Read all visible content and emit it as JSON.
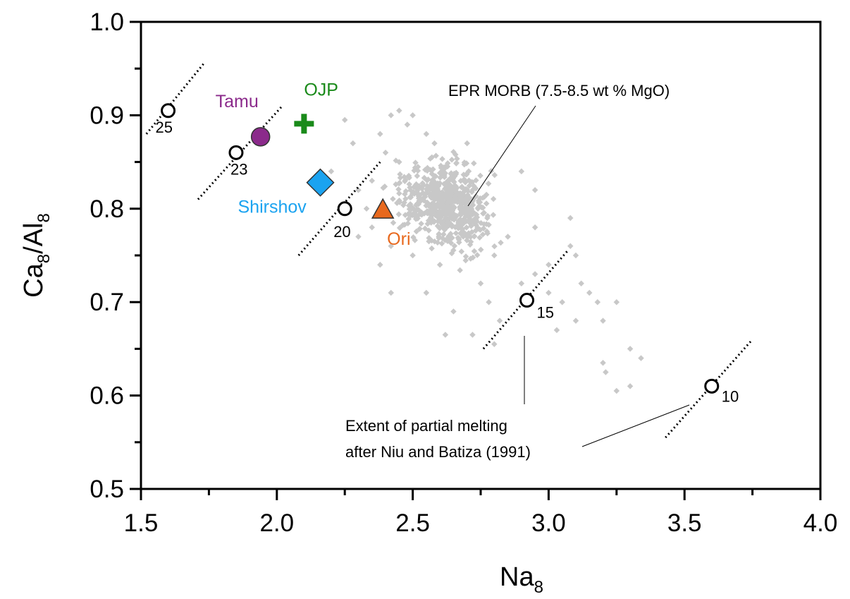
{
  "chart_data": {
    "type": "scatter",
    "title": "",
    "xlabel": {
      "main": "Na",
      "sub": "8"
    },
    "ylabel": {
      "main1": "Ca",
      "sub1": "8",
      "main2": "/Al",
      "sub2": "8"
    },
    "xlim": [
      1.5,
      4.0
    ],
    "ylim": [
      0.5,
      1.0
    ],
    "grid": false,
    "x_ticks": [
      "1.5",
      "2.0",
      "2.5",
      "3.0",
      "3.5",
      "4.0"
    ],
    "y_ticks": [
      "0.5",
      "0.6",
      "0.7",
      "0.8",
      "0.9",
      "1.0"
    ],
    "morb_color": "#c8c8c8",
    "morb_center": [
      2.62,
      0.805
    ],
    "morb_extra_points": [
      [
        2.28,
        0.87
      ],
      [
        2.25,
        0.895
      ],
      [
        2.42,
        0.9
      ],
      [
        2.45,
        0.905
      ],
      [
        2.3,
        0.82
      ],
      [
        2.2,
        0.84
      ],
      [
        2.35,
        0.78
      ],
      [
        2.33,
        0.8
      ],
      [
        2.3,
        0.77
      ],
      [
        2.42,
        0.76
      ],
      [
        2.38,
        0.74
      ],
      [
        2.42,
        0.71
      ],
      [
        2.55,
        0.71
      ],
      [
        2.65,
        0.69
      ],
      [
        2.5,
        0.75
      ],
      [
        2.6,
        0.74
      ],
      [
        2.75,
        0.72
      ],
      [
        2.78,
        0.7
      ],
      [
        2.82,
        0.68
      ],
      [
        2.9,
        0.72
      ],
      [
        2.95,
        0.73
      ],
      [
        3.0,
        0.71
      ],
      [
        3.05,
        0.7
      ],
      [
        3.12,
        0.72
      ],
      [
        3.15,
        0.71
      ],
      [
        3.18,
        0.7
      ],
      [
        3.2,
        0.68
      ],
      [
        3.25,
        0.7
      ],
      [
        3.1,
        0.68
      ],
      [
        3.03,
        0.67
      ],
      [
        3.0,
        0.74
      ],
      [
        3.08,
        0.76
      ],
      [
        3.1,
        0.75
      ],
      [
        3.08,
        0.79
      ],
      [
        2.8,
        0.75
      ],
      [
        2.85,
        0.77
      ],
      [
        2.7,
        0.77
      ],
      [
        2.95,
        0.78
      ],
      [
        2.72,
        0.665
      ],
      [
        2.62,
        0.665
      ],
      [
        2.8,
        0.655
      ],
      [
        3.2,
        0.635
      ],
      [
        3.21,
        0.625
      ],
      [
        3.25,
        0.605
      ],
      [
        3.3,
        0.61
      ],
      [
        3.3,
        0.65
      ],
      [
        3.34,
        0.64
      ],
      [
        2.55,
        0.88
      ],
      [
        2.58,
        0.87
      ],
      [
        2.5,
        0.9
      ],
      [
        2.48,
        0.89
      ],
      [
        2.7,
        0.87
      ],
      [
        2.9,
        0.84
      ],
      [
        2.95,
        0.82
      ],
      [
        2.35,
        0.83
      ],
      [
        2.4,
        0.86
      ],
      [
        2.45,
        0.85
      ],
      [
        2.38,
        0.88
      ]
    ],
    "melting_curves": [
      {
        "label": "25",
        "point": [
          1.6,
          0.905
        ],
        "line": [
          [
            1.52,
            0.88
          ],
          [
            1.73,
            0.955
          ]
        ]
      },
      {
        "label": "23",
        "point": [
          1.85,
          0.86
        ],
        "line": [
          [
            1.71,
            0.81
          ],
          [
            2.02,
            0.91
          ]
        ]
      },
      {
        "label": "20",
        "point": [
          2.25,
          0.8
        ],
        "line": [
          [
            2.08,
            0.75
          ],
          [
            2.38,
            0.85
          ]
        ]
      },
      {
        "label": "15",
        "point": [
          2.92,
          0.702
        ],
        "line": [
          [
            2.76,
            0.65
          ],
          [
            3.07,
            0.755
          ]
        ]
      },
      {
        "label": "10",
        "point": [
          3.6,
          0.61
        ],
        "line": [
          [
            3.43,
            0.555
          ],
          [
            3.75,
            0.66
          ]
        ]
      }
    ],
    "samples": [
      {
        "name": "OJP",
        "x": 2.1,
        "y": 0.891,
        "marker": "plus",
        "color": "#1a8a1a"
      },
      {
        "name": "Tamu",
        "x": 1.94,
        "y": 0.877,
        "marker": "circle",
        "color": "#8b2a8b"
      },
      {
        "name": "Shirshov",
        "x": 2.16,
        "y": 0.828,
        "marker": "diamond",
        "color": "#1ba3f0"
      },
      {
        "name": "Ori",
        "x": 2.39,
        "y": 0.799,
        "marker": "triangle",
        "color": "#e8691e"
      }
    ],
    "annotations": {
      "morb": "EPR MORB (7.5-8.5 wt % MgO)",
      "melting_line1": "Extent of partial melting",
      "melting_line2": "after Niu and Batiza (1991)"
    }
  }
}
